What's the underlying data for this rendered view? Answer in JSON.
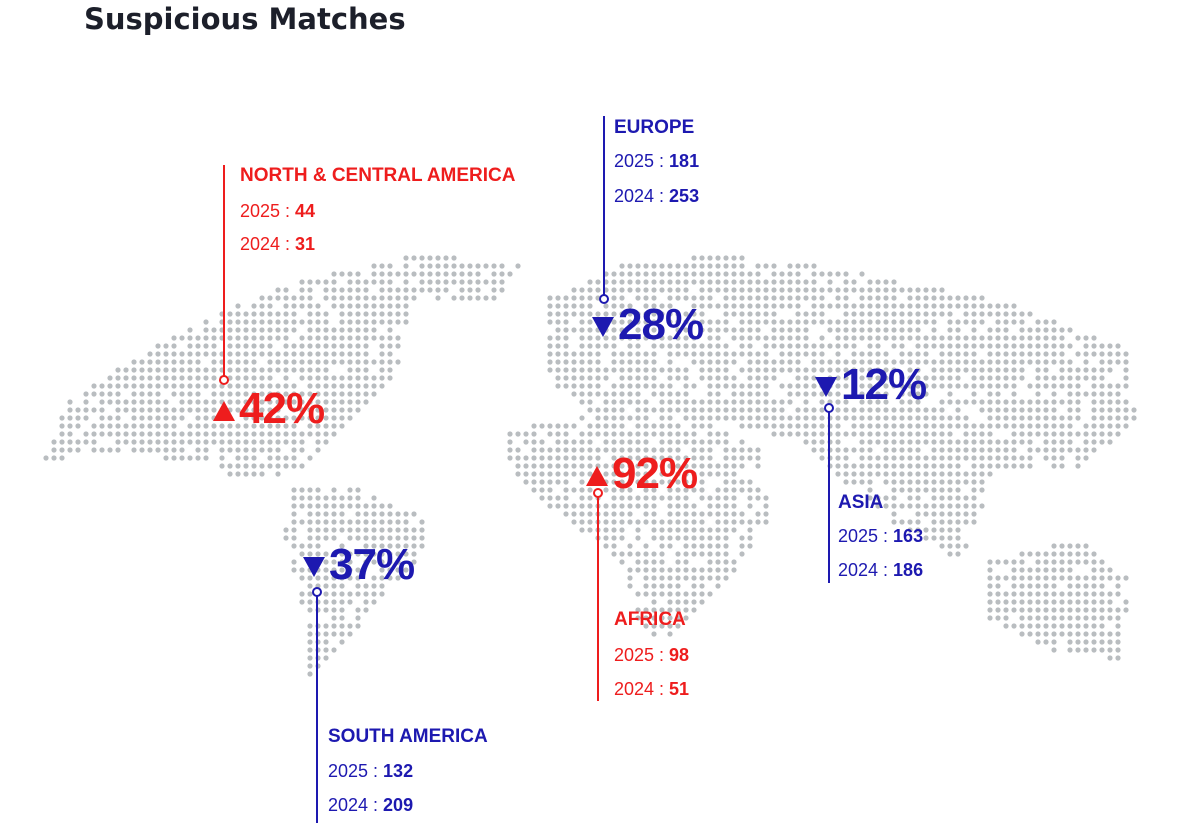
{
  "title": "Suspicious Matches",
  "colors": {
    "increase": "#ee1d1d",
    "decrease": "#1d19b0",
    "map_dots": "#b9bdc0"
  },
  "regions": [
    {
      "name": "NORTH & CENTRAL AMERICA",
      "change": "42%",
      "direction": "up",
      "y2025_label": "2025 : ",
      "y2025": "44",
      "y2024_label": "2024 : ",
      "y2024": "31"
    },
    {
      "name": "EUROPE",
      "change": "28%",
      "direction": "down",
      "y2025_label": "2025 : ",
      "y2025": "181",
      "y2024_label": "2024 : ",
      "y2024": "253"
    },
    {
      "name": "ASIA",
      "change": "12%",
      "direction": "down",
      "y2025_label": "2025 : ",
      "y2025": "163",
      "y2024_label": "2024 : ",
      "y2024": "186"
    },
    {
      "name": "AFRICA",
      "change": "92%",
      "direction": "up",
      "y2025_label": "2025 : ",
      "y2025": "98",
      "y2024_label": "2024 : ",
      "y2024": "51"
    },
    {
      "name": "SOUTH AMERICA",
      "change": "37%",
      "direction": "down",
      "y2025_label": "2025 : ",
      "y2025": "132",
      "y2024_label": "2024 : ",
      "y2024": "209"
    }
  ]
}
